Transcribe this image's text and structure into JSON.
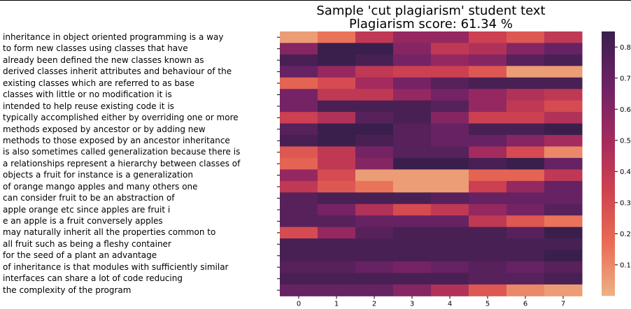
{
  "chart_data": {
    "type": "heatmap",
    "title": "Sample 'cut plagiarism' student text",
    "subtitle": "Plagiarism score: 61.34 %",
    "xticks": [
      "0",
      "1",
      "2",
      "3",
      "4",
      "5",
      "6",
      "7"
    ],
    "rows": [
      "inheritance in object oriented programming is a way",
      "to form new classes using classes that have",
      "already been defined the new classes known as",
      "derived classes inherit attributes and behaviour of the",
      "existing classes which are referred to as base",
      "classes with little or no modification it is",
      "intended to help reuse existing code it is",
      "typically accomplished either by overriding one or more",
      "methods exposed by ancestor or by adding new",
      "methods to those exposed by an ancestor inheritance",
      "is also sometimes called generalization because there is",
      "a relationships represent a hierarchy between classes of",
      "objects a fruit for instance is a generalization",
      "of orange mango apples and many others one",
      "can consider fruit to be an abstraction of",
      "apple orange etc since apples are fruit i",
      "e an apple is a fruit conversely apples",
      "may naturally inherit all the properties common to",
      "all fruit such as being a fleshy container",
      "for the seed of a plant an advantage",
      "of inheritance is that modules with sufficiently similar",
      "interfaces can share a lot of code reducing",
      "the complexity of the program"
    ],
    "values": [
      [
        0.05,
        0.15,
        0.4,
        0.55,
        0.55,
        0.35,
        0.25,
        0.4
      ],
      [
        0.6,
        0.85,
        0.85,
        0.6,
        0.4,
        0.45,
        0.6,
        0.7
      ],
      [
        0.8,
        0.85,
        0.8,
        0.65,
        0.55,
        0.6,
        0.75,
        0.8
      ],
      [
        0.7,
        0.55,
        0.4,
        0.35,
        0.35,
        0.25,
        0.05,
        0.05
      ],
      [
        0.2,
        0.3,
        0.5,
        0.65,
        0.75,
        0.8,
        0.8,
        0.8
      ],
      [
        0.65,
        0.4,
        0.4,
        0.55,
        0.65,
        0.55,
        0.45,
        0.4
      ],
      [
        0.65,
        0.8,
        0.8,
        0.8,
        0.75,
        0.55,
        0.4,
        0.3
      ],
      [
        0.35,
        0.45,
        0.75,
        0.8,
        0.6,
        0.35,
        0.35,
        0.45
      ],
      [
        0.75,
        0.85,
        0.85,
        0.75,
        0.7,
        0.8,
        0.8,
        0.85
      ],
      [
        0.8,
        0.85,
        0.8,
        0.75,
        0.7,
        0.7,
        0.6,
        0.5
      ],
      [
        0.25,
        0.4,
        0.65,
        0.75,
        0.75,
        0.5,
        0.3,
        0.1
      ],
      [
        0.2,
        0.4,
        0.6,
        0.85,
        0.85,
        0.8,
        0.85,
        0.7
      ],
      [
        0.55,
        0.3,
        0.05,
        0.05,
        0.05,
        0.2,
        0.2,
        0.4
      ],
      [
        0.4,
        0.25,
        0.15,
        0.05,
        0.05,
        0.35,
        0.55,
        0.7
      ],
      [
        0.75,
        0.8,
        0.8,
        0.8,
        0.75,
        0.7,
        0.7,
        0.7
      ],
      [
        0.75,
        0.65,
        0.45,
        0.3,
        0.4,
        0.55,
        0.65,
        0.75
      ],
      [
        0.75,
        0.75,
        0.7,
        0.7,
        0.7,
        0.4,
        0.25,
        0.15
      ],
      [
        0.3,
        0.55,
        0.75,
        0.8,
        0.8,
        0.8,
        0.75,
        0.85
      ],
      [
        0.8,
        0.8,
        0.8,
        0.8,
        0.8,
        0.8,
        0.8,
        0.8
      ],
      [
        0.8,
        0.8,
        0.8,
        0.8,
        0.8,
        0.8,
        0.8,
        0.85
      ],
      [
        0.75,
        0.75,
        0.7,
        0.65,
        0.7,
        0.75,
        0.7,
        0.75
      ],
      [
        0.8,
        0.8,
        0.8,
        0.8,
        0.8,
        0.75,
        0.75,
        0.8
      ],
      [
        0.7,
        0.7,
        0.7,
        0.6,
        0.45,
        0.25,
        0.1,
        0.05
      ]
    ],
    "colorbar": {
      "ticks": [
        0.1,
        0.2,
        0.3,
        0.4,
        0.5,
        0.6,
        0.7,
        0.8
      ],
      "range": [
        0.0,
        0.85
      ]
    },
    "colormap": [
      "#edb183",
      "#e96c55",
      "#cf4150",
      "#a12a5e",
      "#6c2266",
      "#3a1f4d"
    ]
  }
}
